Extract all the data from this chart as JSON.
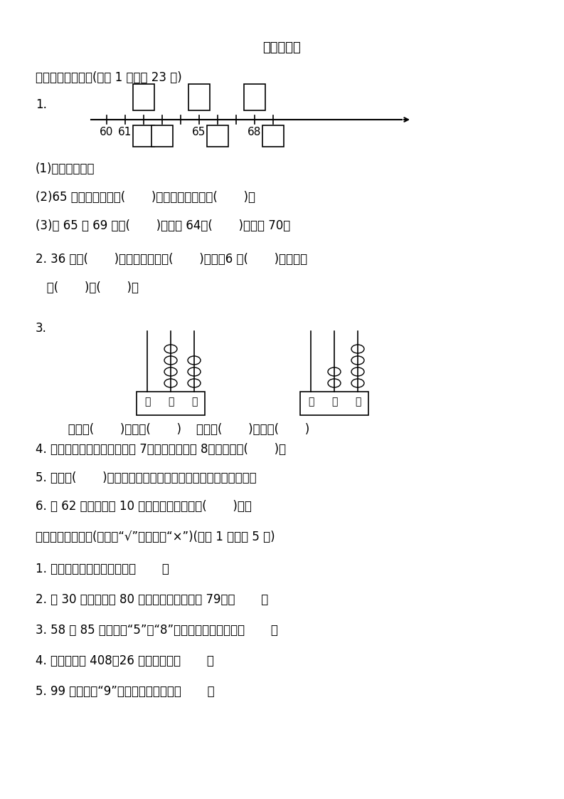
{
  "title": "期中检测卷",
  "bg_color": "#ffffff",
  "text_color": "#000000",
  "font_size": 12,
  "title_font_size": 13,
  "section1_header": "一、认真填一填。(每空 1 分，共 23 分)",
  "q1_label": "1.",
  "q1_sub1": "(1)按顺序填数。",
  "q1_sub2": "(2)65 前面的一个数是(       )，后面的一个数是(       )。",
  "q1_sub3": "(3)在 65 和 69 中，(       )更接近 64，(       )更接近 70。",
  "q2": "2. 36 中的(       )在十位上，表示(       )个十，6 在(       )位上，表",
  "q2b": "   示(       )个(       )。",
  "q3_label": "3.",
  "q3_sub": "   写作：(       )读作：(       )    写作：(       )读作：(       )",
  "q4": "4. 一个两位数，十位上的数是 7，个位上的数是 8，这个数是(       )。",
  "q5": "5. 至少用(       )个完全相同的小正方形可以拼成一个大正方形。",
  "q6": "6. 有 62 颗糖果，每 10 颗装一袋，可以装满(       )袋。",
  "section2_header": "二、智慧辨一辨。(对的画“√”，错的画“×”)(每题 1 分，共 5 分)",
  "s2q1": "1. 读数和写数都从高位起。（       ）",
  "s2q2": "2. 比 30 多得多，比 80 少一些的数，一定是 79。（       ）",
  "s2q3": "3. 58 和 85 都有数字“5”和“8”，所以它们一样大。（       ）",
  "s2q4": "4. 四十八写作 408，26 读作二六。（       ）",
  "s2q5": "5. 99 中的两个“9”表示的意义一样。（       ）",
  "number_line_numbers": [
    "60",
    "61",
    "",
    "",
    "65",
    "",
    "68",
    ""
  ],
  "abacus1_label": "百  十  个",
  "abacus2_label": "百  十  个"
}
